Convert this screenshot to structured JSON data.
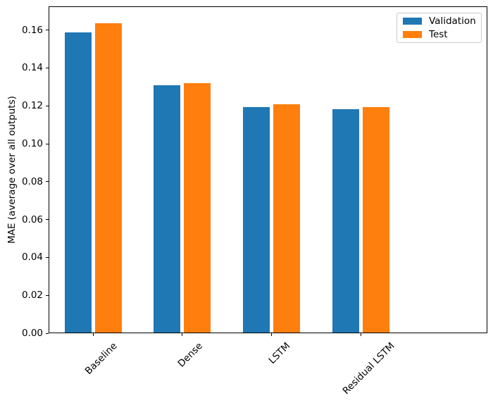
{
  "chart_data": {
    "type": "bar",
    "title": "",
    "categories": [
      "Baseline",
      "Dense",
      "LSTM",
      "Residual LSTM"
    ],
    "series": [
      {
        "name": "Validation",
        "color": "#1f77b4",
        "values": [
          0.159,
          0.131,
          0.1195,
          0.1185
        ]
      },
      {
        "name": "Test",
        "color": "#ff7f0e",
        "values": [
          0.164,
          0.132,
          0.121,
          0.1195
        ]
      }
    ],
    "xlabel": "",
    "ylabel": "MAE (average over all outputs)",
    "ylim": [
      0,
      0.1725
    ],
    "yticks": [
      0.0,
      0.02,
      0.04,
      0.06,
      0.08,
      0.1,
      0.12,
      0.14,
      0.16
    ],
    "ytick_decimals": 2,
    "xlim": [
      -0.5,
      4.42
    ],
    "bar_width_units": 0.3,
    "bar_offset_units": 0.17,
    "xtick_rotation": 45,
    "grid": false,
    "legend": {
      "position": "upper right",
      "entries": [
        "Validation",
        "Test"
      ]
    }
  }
}
